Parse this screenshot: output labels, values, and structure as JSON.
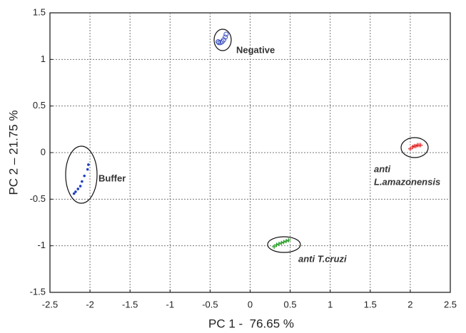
{
  "chart_data": {
    "type": "scatter",
    "xlabel": "PC 1 -  76.65 %",
    "ylabel": "PC 2 – 21.75 %",
    "xlim": [
      -2.5,
      2.5
    ],
    "ylim": [
      -1.5,
      1.5
    ],
    "xticks": [
      -2.5,
      -2,
      -1.5,
      -1,
      -0.5,
      0,
      0.5,
      1,
      1.5,
      2,
      2.5
    ],
    "yticks": [
      -1.5,
      -1,
      -0.5,
      0,
      0.5,
      1,
      1.5
    ],
    "grid": true,
    "annotations": [
      "Negative",
      "Buffer",
      "anti",
      "L.amazonensis",
      "anti T.cruzi"
    ],
    "series": [
      {
        "color": "#1f3fbf",
        "marker": "dot",
        "x": [
          -2.02,
          -2.03,
          -2.07,
          -2.1,
          -2.12,
          -2.15,
          -2.18,
          -2.2
        ],
        "values": [
          -0.13,
          -0.18,
          -0.25,
          -0.31,
          -0.36,
          -0.39,
          -0.42,
          -0.44
        ]
      },
      {
        "color": "#3a4fc0",
        "marker": "circle",
        "x": [
          -0.3,
          -0.31,
          -0.33,
          -0.35,
          -0.37,
          -0.39,
          -0.4
        ],
        "values": [
          1.27,
          1.24,
          1.21,
          1.19,
          1.18,
          1.18,
          1.19
        ]
      },
      {
        "color": "#e02020",
        "marker": "plus",
        "x": [
          2.0,
          2.03,
          2.05,
          2.07,
          2.09,
          2.11,
          2.13
        ],
        "values": [
          0.04,
          0.06,
          0.07,
          0.07,
          0.08,
          0.08,
          0.08
        ]
      },
      {
        "color": "#2aa02a",
        "marker": "plus",
        "x": [
          0.3,
          0.33,
          0.36,
          0.39,
          0.42,
          0.45,
          0.48
        ],
        "values": [
          -1.01,
          -0.99,
          -0.98,
          -0.97,
          -0.96,
          -0.95,
          -0.94
        ]
      }
    ]
  }
}
